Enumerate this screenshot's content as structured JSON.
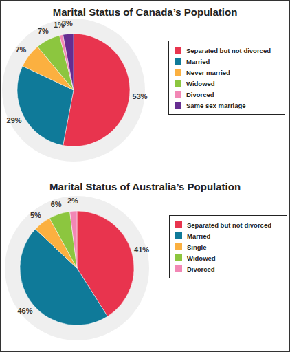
{
  "chart_data": [
    {
      "type": "pie",
      "title": "Marital Status of Canada’s Population",
      "categories": [
        "Separated but not divorced",
        "Married",
        "Never married",
        "Widowed",
        "Divorced",
        "Same sex marriage"
      ],
      "values": [
        53,
        29,
        7,
        7,
        1,
        3
      ],
      "value_labels": [
        "53%",
        "29%",
        "7%",
        "7%",
        "1%",
        "3%"
      ],
      "colors": [
        "#e8344e",
        "#0f7a99",
        "#fbb040",
        "#8cc63f",
        "#f287b5",
        "#662d91"
      ],
      "data_labels": true,
      "legend": "right"
    },
    {
      "type": "pie",
      "title": "Marital Status of Australia’s Population",
      "categories": [
        "Separated but not divorced",
        "Married",
        "Single",
        "Widowed",
        "Divorced"
      ],
      "values": [
        41,
        46,
        5,
        6,
        2
      ],
      "value_labels": [
        "41%",
        "46%",
        "5%",
        "6%",
        "2%"
      ],
      "colors": [
        "#e8344e",
        "#0f7a99",
        "#fbb040",
        "#8cc63f",
        "#f287b5"
      ],
      "data_labels": true,
      "legend": "right"
    }
  ]
}
